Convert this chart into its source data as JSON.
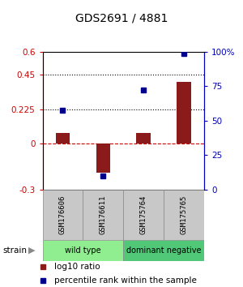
{
  "title": "GDS2691 / 4881",
  "samples": [
    "GSM176606",
    "GSM176611",
    "GSM175764",
    "GSM175765"
  ],
  "log10_ratio": [
    0.07,
    -0.19,
    0.07,
    0.4
  ],
  "percentile_rank": [
    0.575,
    0.1,
    0.72,
    0.985
  ],
  "group_boundaries": [
    {
      "start": 0,
      "end": 1,
      "label": "wild type",
      "color": "#90ee90"
    },
    {
      "start": 2,
      "end": 3,
      "label": "dominant negative",
      "color": "#50c878"
    }
  ],
  "ylim_left": [
    -0.3,
    0.6
  ],
  "ylim_right": [
    0.0,
    1.0
  ],
  "yticks_left": [
    -0.3,
    0.0,
    0.225,
    0.45,
    0.6
  ],
  "ytick_labels_left": [
    "-0.3",
    "0",
    "0.225",
    "0.45",
    "0.6"
  ],
  "yticks_right": [
    0.0,
    0.25,
    0.5,
    0.75,
    1.0
  ],
  "ytick_labels_right": [
    "0",
    "25",
    "50",
    "75",
    "100%"
  ],
  "hlines": [
    0.225,
    0.45
  ],
  "bar_color": "#8b1a1a",
  "dot_color": "#00008b",
  "bar_width": 0.35
}
